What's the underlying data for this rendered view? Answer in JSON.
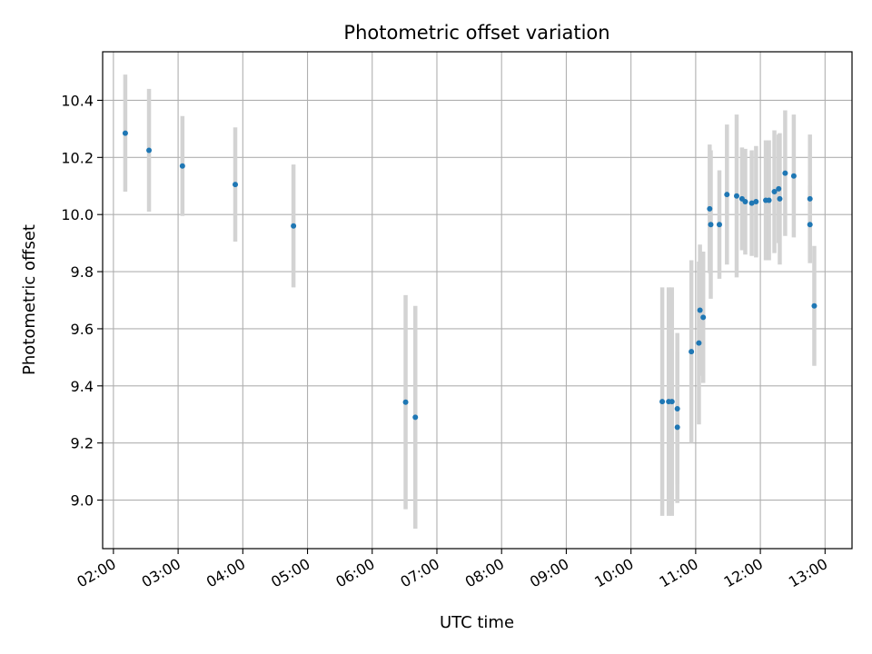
{
  "chart_data": {
    "type": "scatter",
    "title": "Photometric offset variation",
    "xlabel": "UTC time",
    "ylabel": "Photometric offset",
    "x_ticks": [
      "02:00",
      "03:00",
      "04:00",
      "05:00",
      "06:00",
      "07:00",
      "08:00",
      "09:00",
      "10:00",
      "11:00",
      "12:00",
      "13:00"
    ],
    "y_ticks": [
      "9.0",
      "9.2",
      "9.4",
      "9.6",
      "9.8",
      "10.0",
      "10.2",
      "10.4"
    ],
    "xlim": [
      "01:50",
      "13:25"
    ],
    "ylim": [
      8.83,
      10.57
    ],
    "grid": true,
    "colors": {
      "point": "#1f77b4",
      "errorbar": "#d3d3d3",
      "grid": "#b0b0b0"
    },
    "points": [
      {
        "t": "02:11",
        "y": 10.285,
        "err": 0.205
      },
      {
        "t": "02:33",
        "y": 10.225,
        "err": 0.215
      },
      {
        "t": "03:04",
        "y": 10.17,
        "err": 0.175
      },
      {
        "t": "03:53",
        "y": 10.105,
        "err": 0.2
      },
      {
        "t": "04:47",
        "y": 9.96,
        "err": 0.215
      },
      {
        "t": "06:31",
        "y": 9.343,
        "err": 0.375
      },
      {
        "t": "06:40",
        "y": 9.29,
        "err": 0.39
      },
      {
        "t": "10:29",
        "y": 9.345,
        "err": 0.4
      },
      {
        "t": "10:35",
        "y": 9.345,
        "err": 0.4
      },
      {
        "t": "10:38",
        "y": 9.345,
        "err": 0.4
      },
      {
        "t": "10:43",
        "y": 9.32,
        "err": 0.265
      },
      {
        "t": "10:43",
        "y": 9.255,
        "err": 0.265
      },
      {
        "t": "10:56",
        "y": 9.52,
        "err": 0.32
      },
      {
        "t": "11:03",
        "y": 9.55,
        "err": 0.285
      },
      {
        "t": "11:04",
        "y": 9.665,
        "err": 0.23
      },
      {
        "t": "11:07",
        "y": 9.64,
        "err": 0.23
      },
      {
        "t": "11:13",
        "y": 10.02,
        "err": 0.225
      },
      {
        "t": "11:14",
        "y": 9.965,
        "err": 0.26
      },
      {
        "t": "11:22",
        "y": 9.965,
        "err": 0.19
      },
      {
        "t": "11:29",
        "y": 10.07,
        "err": 0.245
      },
      {
        "t": "11:38",
        "y": 10.065,
        "err": 0.285
      },
      {
        "t": "11:43",
        "y": 10.055,
        "err": 0.18
      },
      {
        "t": "11:46",
        "y": 10.045,
        "err": 0.185
      },
      {
        "t": "11:52",
        "y": 10.04,
        "err": 0.185
      },
      {
        "t": "11:56",
        "y": 10.045,
        "err": 0.195
      },
      {
        "t": "12:05",
        "y": 10.05,
        "err": 0.21
      },
      {
        "t": "12:08",
        "y": 10.05,
        "err": 0.21
      },
      {
        "t": "12:13",
        "y": 10.08,
        "err": 0.215
      },
      {
        "t": "12:17",
        "y": 10.09,
        "err": 0.19
      },
      {
        "t": "12:18",
        "y": 10.055,
        "err": 0.23
      },
      {
        "t": "12:23",
        "y": 10.145,
        "err": 0.22
      },
      {
        "t": "12:31",
        "y": 10.135,
        "err": 0.215
      },
      {
        "t": "12:46",
        "y": 10.055,
        "err": 0.225
      },
      {
        "t": "12:46",
        "y": 9.965,
        "err": 0.135
      },
      {
        "t": "12:50",
        "y": 9.68,
        "err": 0.21
      }
    ]
  }
}
